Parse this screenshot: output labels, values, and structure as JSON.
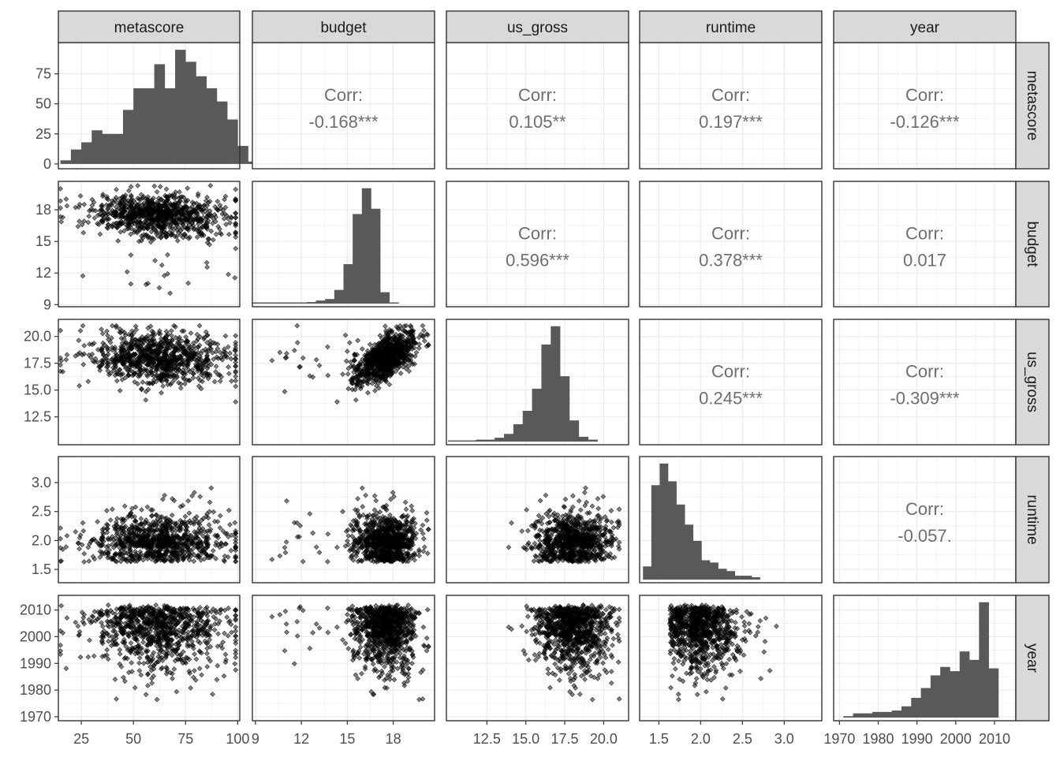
{
  "chart_data": {
    "type": "scatter-matrix",
    "variables": [
      "metascore",
      "budget",
      "us_gross",
      "runtime",
      "year"
    ],
    "colors": {
      "panel_border": "#333333",
      "strip_fill": "#d9d9d9",
      "grid": "#ebebeb",
      "bar": "#595959",
      "point": "#000000",
      "corr_text": "#6e6e6e"
    },
    "axes": {
      "metascore": {
        "range": [
          14,
          101
        ],
        "ticks": [
          25,
          50,
          75,
          100
        ],
        "tick_labels": [
          "25",
          "50",
          "75",
          "100"
        ],
        "y_ticks": [
          0,
          25,
          50,
          75
        ],
        "y_tick_labels": [
          "0",
          "25",
          "50",
          "75"
        ],
        "y_range": [
          -4,
          101
        ]
      },
      "budget": {
        "range": [
          8.8,
          20.7
        ],
        "ticks": [
          9,
          12,
          15,
          18
        ],
        "tick_labels": [
          "9",
          "12",
          "15",
          "18"
        ]
      },
      "us_gross": {
        "range": [
          9.9,
          21.6
        ],
        "ticks": [
          12.5,
          15.0,
          17.5,
          20.0
        ],
        "tick_labels": [
          "12.5",
          "15.0",
          "17.5",
          "20.0"
        ]
      },
      "runtime": {
        "range": [
          1.27,
          3.45
        ],
        "ticks": [
          1.5,
          2.0,
          2.5,
          3.0
        ],
        "tick_labels": [
          "1.5",
          "2.0",
          "2.5",
          "3.0"
        ]
      },
      "year": {
        "range": [
          1968.5,
          2015.5
        ],
        "ticks": [
          1970,
          1980,
          1990,
          2000,
          2010
        ],
        "tick_labels": [
          "1970",
          "1980",
          "1990",
          "2000",
          "2010"
        ]
      }
    },
    "correlations": [
      {
        "row": "metascore",
        "col": "budget",
        "label": "Corr:",
        "value": "-0.168***"
      },
      {
        "row": "metascore",
        "col": "us_gross",
        "label": "Corr:",
        "value": "0.105**"
      },
      {
        "row": "metascore",
        "col": "runtime",
        "label": "Corr:",
        "value": "0.197***"
      },
      {
        "row": "metascore",
        "col": "year",
        "label": "Corr:",
        "value": "-0.126***"
      },
      {
        "row": "budget",
        "col": "us_gross",
        "label": "Corr:",
        "value": "0.596***"
      },
      {
        "row": "budget",
        "col": "runtime",
        "label": "Corr:",
        "value": "0.378***"
      },
      {
        "row": "budget",
        "col": "year",
        "label": "Corr:",
        "value": "0.017"
      },
      {
        "row": "us_gross",
        "col": "runtime",
        "label": "Corr:",
        "value": "0.245***"
      },
      {
        "row": "us_gross",
        "col": "year",
        "label": "Corr:",
        "value": "-0.309***"
      },
      {
        "row": "runtime",
        "col": "year",
        "label": "Corr:",
        "value": "-0.057."
      }
    ],
    "histograms": {
      "metascore": {
        "bin_start": 15,
        "bin_width": 5,
        "counts": [
          3,
          12,
          18,
          28,
          25,
          25,
          45,
          63,
          63,
          83,
          63,
          95,
          85,
          73,
          63,
          52,
          37,
          15,
          2
        ]
      },
      "budget": {
        "bin_start": 8.75,
        "bin_width": 0.6,
        "counts": [
          1,
          1,
          1,
          1,
          1,
          1,
          2,
          4,
          6,
          18,
          52,
          118,
          152,
          125,
          15,
          1
        ]
      },
      "us_gross": {
        "bin_start": 10.0,
        "bin_width": 0.6,
        "counts": [
          1,
          1,
          1,
          2,
          2,
          4,
          8,
          18,
          32,
          55,
          101,
          120,
          68,
          22,
          5,
          2
        ]
      },
      "runtime": {
        "bin_start": 1.31,
        "bin_width": 0.1,
        "counts": [
          17,
          122,
          150,
          127,
          97,
          71,
          50,
          25,
          22,
          14,
          11,
          5,
          5,
          3
        ]
      },
      "year": {
        "bin_start": 1971,
        "bin_width": 2.5,
        "counts": [
          1,
          3,
          3,
          4,
          4,
          5,
          8,
          14,
          21,
          30,
          36,
          33,
          47,
          41,
          82,
          35
        ]
      }
    },
    "scatter": {
      "n_points": 900,
      "summary": {
        "metascore": {
          "center": 62,
          "spread": 17
        },
        "budget": {
          "center": 17.5,
          "spread": 1.0
        },
        "us_gross": {
          "center": 18.0,
          "spread": 1.2
        },
        "runtime": {
          "center": 1.88,
          "spread": 0.35
        },
        "year": {
          "center": 2001,
          "spread": 9
        }
      }
    }
  }
}
